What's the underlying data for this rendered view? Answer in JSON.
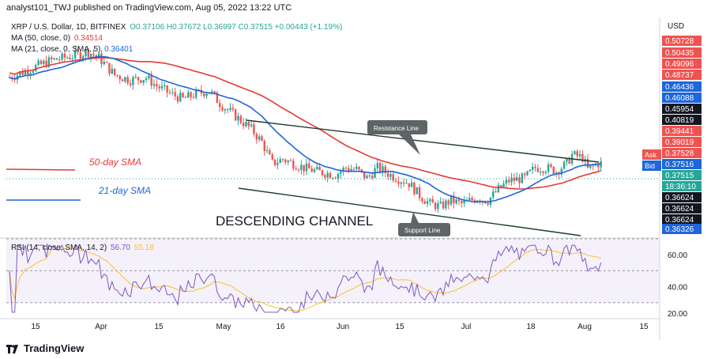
{
  "header": {
    "publisher": "analyst101_TWJ published on TradingView.com, Aug 05, 2022 13:22 UTC"
  },
  "legend": {
    "symbol": "XRP / U.S. Dollar, 1D, BITFINEX",
    "ohlc": "O0.37106 H0.37672 L0.36997 C0.37515 +0.00443 (+1.19%)",
    "ma50_label": "MA (50, close, 0)",
    "ma50_value": "0.34514",
    "ma21_label": "MA (21, close, 0, SMA, 5)",
    "ma21_value": "0.36401",
    "rsi_label": "RSI (14, close, SMA, 14, 2)",
    "rsi_value": "56.70",
    "rsi_sma_value": "55.18"
  },
  "annotations": {
    "resistance": "Resistance Line",
    "support": "Support Line",
    "channel": "DESCENDING CHANNEL",
    "sma50": "50-day SMA",
    "sma21": "21-day SMA"
  },
  "footer": {
    "brand": "TradingView"
  },
  "colors": {
    "up": "#26a69a",
    "down": "#ef5350",
    "ma50": "#e53935",
    "ma21": "#1e66d9",
    "rsi": "#7e57c2",
    "rsi_sma": "#fbc02d",
    "trend": "#1f3d2b"
  },
  "chart_data": {
    "type": "candlestick",
    "price_axis": {
      "currency": "USD",
      "ticks": [
        "0.50728",
        "0.50435",
        "0.49096",
        "0.48737",
        "0.46436",
        "0.46088",
        "0.45954",
        "0.40819",
        "0.39441",
        "0.39019",
        "0.37528",
        "0.37516",
        "0.37515",
        "18:36:10",
        "0.36624",
        "0.36624",
        "0.36624",
        "0.36326"
      ],
      "ask_label": "Ask",
      "bid_label": "Bid"
    },
    "x_ticks": [
      "15",
      "Apr",
      "15",
      "May",
      "16",
      "Jun",
      "15",
      "Jul",
      "18",
      "Aug",
      "15"
    ],
    "rsi_ticks": [
      "60.00",
      "40.00",
      "20.00"
    ],
    "rsi_range": [
      20,
      70
    ],
    "last_close": 0.37515
  }
}
